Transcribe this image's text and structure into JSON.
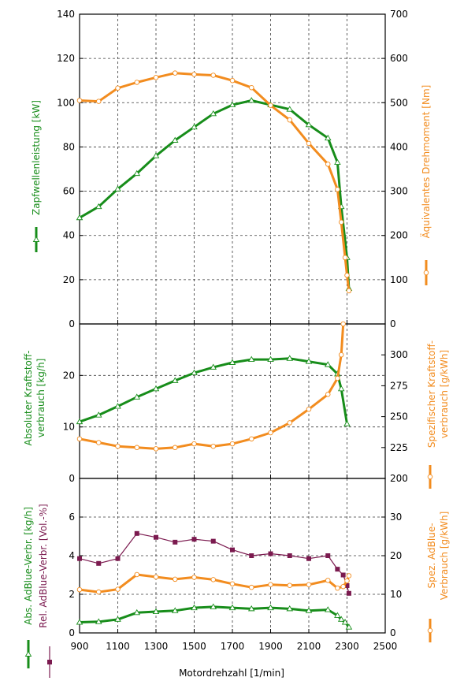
{
  "colors": {
    "green": "#178d1a",
    "orange": "#f28c1f",
    "purple": "#7b1a4f",
    "grid": "#3a3a3a"
  },
  "xaxis": {
    "label": "Motordrehzahl [1/min]",
    "ticks": [
      "900",
      "1100",
      "1300",
      "1500",
      "1700",
      "1900",
      "2100",
      "2300",
      "2500"
    ],
    "range": [
      900,
      2500
    ]
  },
  "chart_data": [
    {
      "type": "line",
      "ylabel": "Zapfwellenleistung [kW]",
      "y2label": "Äquivalentes Drehmoment [Nm]",
      "ylim": [
        0,
        140
      ],
      "y2lim": [
        0,
        700
      ],
      "yticks": [
        "0",
        "20",
        "40",
        "60",
        "80",
        "100",
        "120",
        "140"
      ],
      "y2ticks": [
        "0",
        "100",
        "200",
        "300",
        "400",
        "500",
        "600",
        "700"
      ],
      "grid": true,
      "series": [
        {
          "axis": "left",
          "color": "#178d1a",
          "marker": "triangle",
          "x": [
            900,
            1000,
            1100,
            1200,
            1300,
            1400,
            1500,
            1600,
            1700,
            1800,
            1900,
            2000,
            2100,
            2200,
            2250,
            2270,
            2300,
            2310
          ],
          "y": [
            48,
            53,
            61,
            68,
            76,
            83,
            89,
            95,
            99,
            101,
            99,
            97,
            90,
            84,
            73,
            53,
            30,
            16
          ]
        },
        {
          "axis": "right",
          "color": "#f28c1f",
          "marker": "circle",
          "x": [
            900,
            1000,
            1100,
            1200,
            1300,
            1400,
            1500,
            1600,
            1700,
            1800,
            1900,
            2000,
            2100,
            2200,
            2250,
            2270,
            2290,
            2300,
            2310
          ],
          "y": [
            505,
            503,
            533,
            546,
            557,
            567,
            564,
            562,
            550,
            534,
            494,
            461,
            408,
            361,
            304,
            230,
            150,
            110,
            75
          ]
        }
      ]
    },
    {
      "type": "line",
      "ylabel": "Absoluter Kraftstoff- verbrauch [kg/h]",
      "y2label": "Spezifischer Kraftstoff- verbrauch [g/kWh]",
      "ylim": [
        0,
        30
      ],
      "y2lim": [
        200,
        325
      ],
      "yticks": [
        "0",
        "10",
        "20"
      ],
      "y2ticks": [
        "200",
        "225",
        "250",
        "275",
        "300"
      ],
      "grid": true,
      "series": [
        {
          "axis": "left",
          "color": "#178d1a",
          "marker": "triangle",
          "x": [
            900,
            1000,
            1100,
            1200,
            1300,
            1400,
            1500,
            1600,
            1700,
            1800,
            1900,
            2000,
            2100,
            2200,
            2250,
            2270,
            2300
          ],
          "y": [
            11,
            12.3,
            14,
            15.8,
            17.4,
            19,
            20.5,
            21.6,
            22.5,
            23.1,
            23.1,
            23.3,
            22.7,
            22.1,
            20.3,
            17.4,
            10.6
          ]
        },
        {
          "axis": "right",
          "color": "#f28c1f",
          "marker": "circle",
          "x": [
            900,
            1000,
            1100,
            1200,
            1300,
            1400,
            1500,
            1600,
            1700,
            1800,
            1900,
            2000,
            2100,
            2200,
            2250,
            2270,
            2280
          ],
          "y": [
            232,
            229,
            226,
            225,
            224,
            225,
            228,
            226,
            228,
            232,
            237,
            245,
            256,
            268,
            281,
            300,
            325
          ]
        }
      ]
    },
    {
      "type": "line",
      "ylabel": "Rel. AdBlue-Verbr. [Vol.-%]",
      "ylabel_secondary": "Abs. AdBlue-Verbr. [kg/h]",
      "y2label": "Spez. AdBlue- Verbrauch [g/kWh]",
      "ylim": [
        0,
        8
      ],
      "y2lim": [
        0,
        40
      ],
      "yticks": [
        "0",
        "2",
        "4",
        "6"
      ],
      "y2ticks": [
        "0",
        "10",
        "20",
        "30"
      ],
      "grid": true,
      "series": [
        {
          "axis": "left",
          "color": "#178d1a",
          "marker": "triangle",
          "x": [
            900,
            1000,
            1100,
            1200,
            1300,
            1400,
            1500,
            1600,
            1700,
            1800,
            1900,
            2000,
            2100,
            2200,
            2250,
            2270,
            2290,
            2310
          ],
          "y": [
            0.55,
            0.58,
            0.7,
            1.05,
            1.1,
            1.15,
            1.3,
            1.35,
            1.3,
            1.25,
            1.3,
            1.25,
            1.15,
            1.2,
            0.9,
            0.7,
            0.55,
            0.3
          ]
        },
        {
          "axis": "left",
          "color": "#7b1a4f",
          "marker": "square",
          "x": [
            900,
            1000,
            1100,
            1200,
            1300,
            1400,
            1500,
            1600,
            1700,
            1800,
            1900,
            2000,
            2100,
            2200,
            2250,
            2280,
            2300,
            2310
          ],
          "y": [
            3.85,
            3.6,
            3.85,
            5.15,
            4.95,
            4.7,
            4.85,
            4.75,
            4.3,
            4.0,
            4.1,
            4.0,
            3.85,
            4.0,
            3.3,
            3.0,
            2.45,
            2.05
          ]
        },
        {
          "axis": "right",
          "color": "#f28c1f",
          "marker": "circle",
          "x": [
            900,
            1000,
            1100,
            1200,
            1300,
            1400,
            1500,
            1600,
            1700,
            1800,
            1900,
            2000,
            2100,
            2200,
            2250,
            2280,
            2300,
            2310
          ],
          "y": [
            11.2,
            10.6,
            11.3,
            15.1,
            14.5,
            13.9,
            14.4,
            13.8,
            12.7,
            11.8,
            12.5,
            12.3,
            12.5,
            13.6,
            11.6,
            12.0,
            13.5,
            14.8
          ]
        }
      ]
    }
  ]
}
